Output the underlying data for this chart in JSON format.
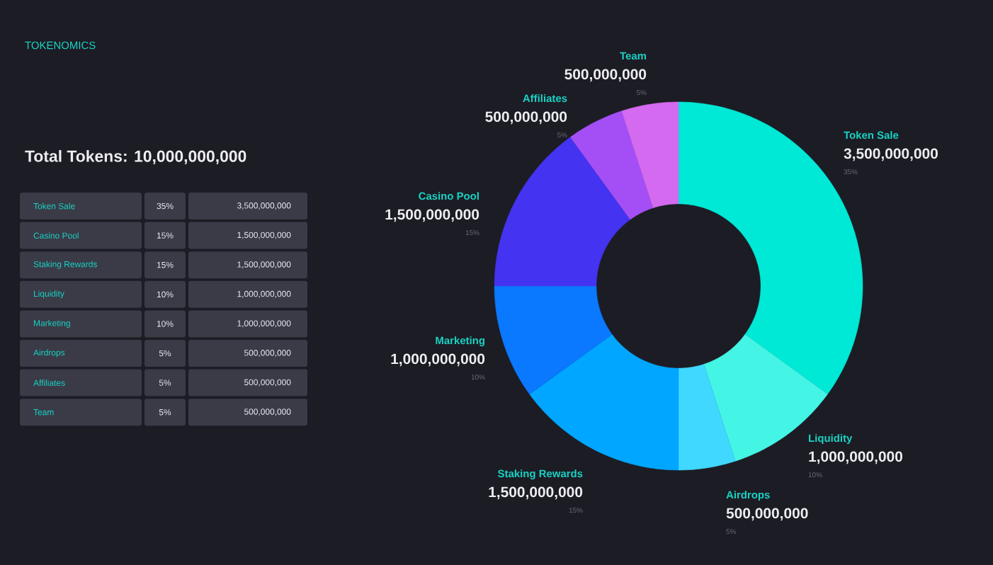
{
  "chart_data": {
    "type": "donut",
    "title": "TOKENOMICS",
    "subtitle": "Total Tokens: 10,000,000,000",
    "categories": [
      "Token Sale",
      "Liquidity",
      "Airdrops",
      "Staking Rewards",
      "Marketing",
      "Casino Pool",
      "Affiliates",
      "Team"
    ],
    "values": [
      3500000000,
      1000000000,
      500000000,
      1500000000,
      1000000000,
      1500000000,
      500000000,
      500000000
    ],
    "value_labels": [
      "3,500,000,000",
      "1,000,000,000",
      "500,000,000",
      "1,500,000,000",
      "1,000,000,000",
      "1,500,000,000",
      "500,000,000",
      "500,000,000"
    ],
    "colors": [
      "#00e8d6",
      "#44f5e6",
      "#40d8ff",
      "#00a6ff",
      "#0a78ff",
      "#4433f0",
      "#a44ff5",
      "#d46af0"
    ],
    "annotations": [
      "35%",
      "10%",
      "5%",
      "15%",
      "10%",
      "15%",
      "5%",
      "5%",
      "Token Sale",
      "35%",
      "3,500,000,000",
      "Casino Pool",
      "15%",
      "1,500,000,000",
      "Staking Rewards",
      "15%",
      "1,500,000,000",
      "Liquidity",
      "10%",
      "1,000,000,000",
      "Marketing",
      "10%",
      "1,000,000,000",
      "Airdrops",
      "5%",
      "500,000,000",
      "Affiliates",
      "5%",
      "500,000,000",
      "Team",
      "5%",
      "500,000,000"
    ]
  }
}
